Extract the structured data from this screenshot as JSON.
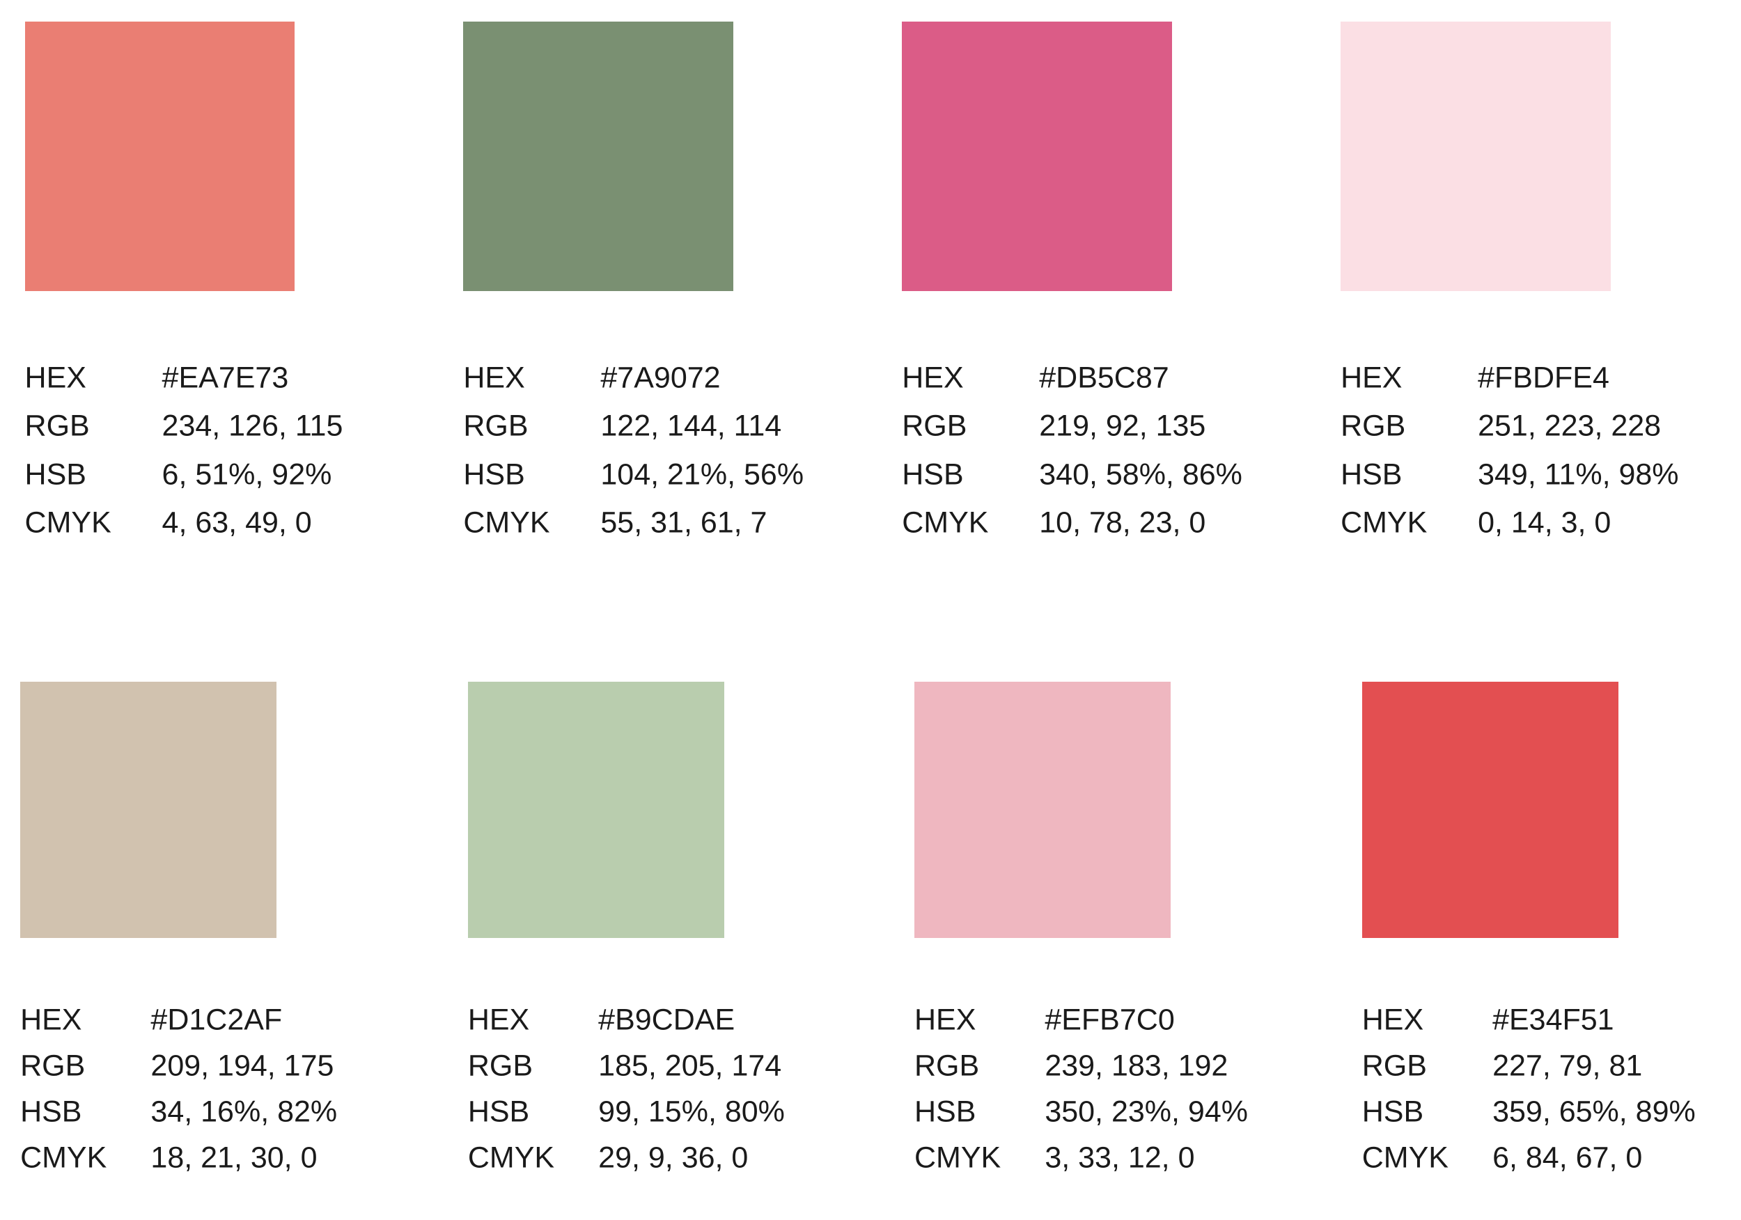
{
  "labels": {
    "hex": "HEX",
    "rgb": "RGB",
    "hsb": "HSB",
    "cmyk": "CMYK"
  },
  "swatches": [
    {
      "hex": "#EA7E73",
      "rgb": "234, 126, 115",
      "hsb": "6, 51%, 92%",
      "cmyk": "4, 63, 49, 0"
    },
    {
      "hex": "#7A9072",
      "rgb": "122, 144, 114",
      "hsb": "104, 21%, 56%",
      "cmyk": "55, 31, 61, 7"
    },
    {
      "hex": "#DB5C87",
      "rgb": "219, 92, 135",
      "hsb": "340, 58%, 86%",
      "cmyk": "10, 78, 23, 0"
    },
    {
      "hex": "#FBDFE4",
      "rgb": "251, 223, 228",
      "hsb": "349, 11%, 98%",
      "cmyk": "0, 14, 3, 0"
    },
    {
      "hex": "#D1C2AF",
      "rgb": "209, 194, 175",
      "hsb": "34, 16%, 82%",
      "cmyk": "18, 21, 30, 0"
    },
    {
      "hex": "#B9CDAE",
      "rgb": "185, 205, 174",
      "hsb": "99, 15%, 80%",
      "cmyk": "29, 9, 36, 0"
    },
    {
      "hex": "#EFB7C0",
      "rgb": "239, 183, 192",
      "hsb": "350, 23%, 94%",
      "cmyk": "3, 33, 12, 0"
    },
    {
      "hex": "#E34F51",
      "rgb": "227, 79, 81",
      "hsb": "359, 65%, 89%",
      "cmyk": "6, 84, 67, 0"
    }
  ]
}
